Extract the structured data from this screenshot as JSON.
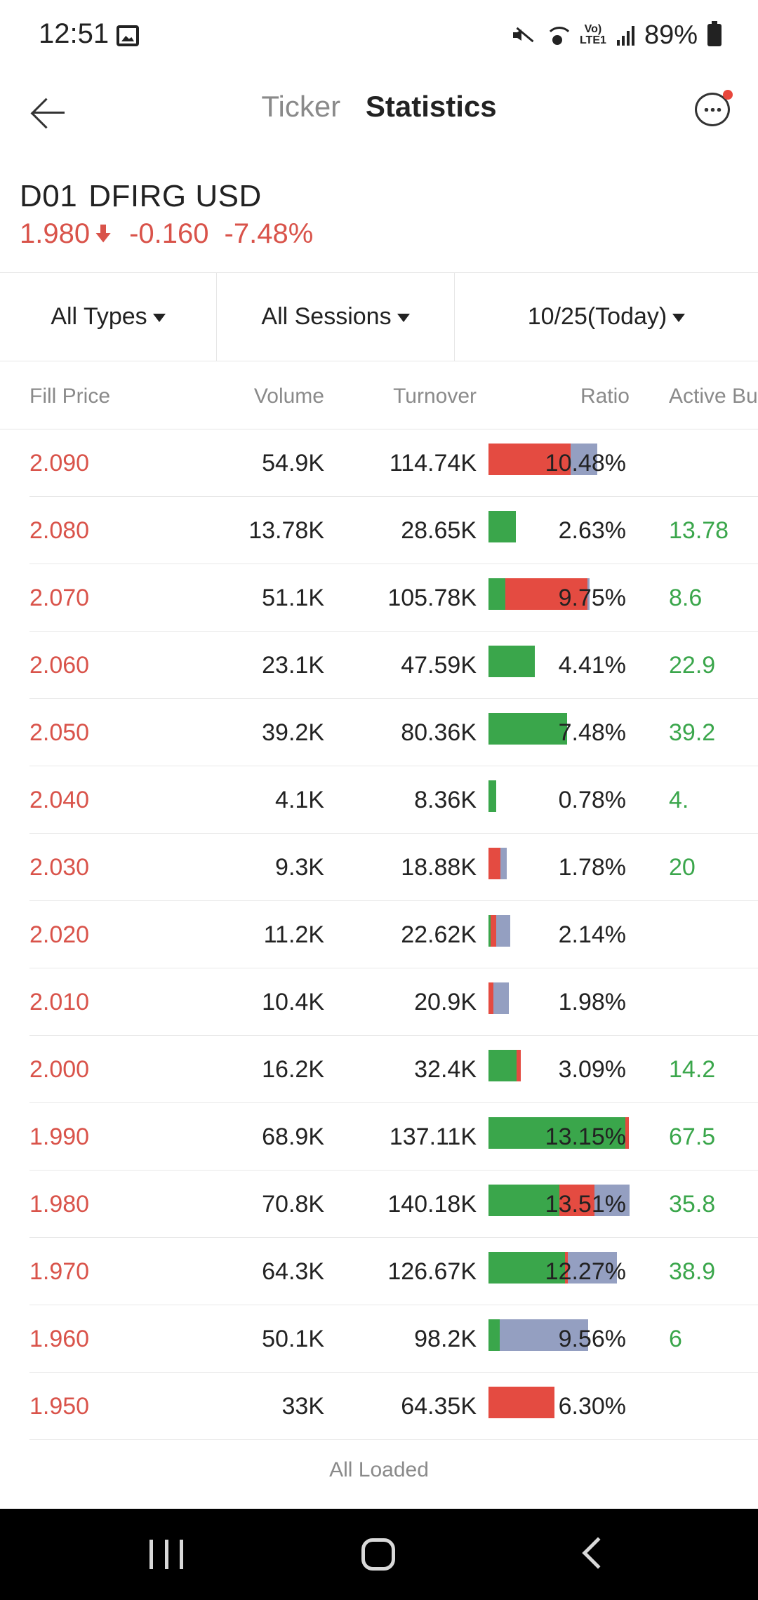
{
  "status_bar": {
    "time": "12:51",
    "battery": "89%",
    "network": "Vo) LTE1"
  },
  "header": {
    "tabs": [
      {
        "label": "Ticker"
      },
      {
        "label": "Statistics"
      }
    ]
  },
  "quote": {
    "code": "D01",
    "name": "DFIRG USD",
    "price": "1.980",
    "change": "-0.160",
    "change_pct": "-7.48%",
    "direction": "down"
  },
  "filters": {
    "type": "All Types",
    "session": "All Sessions",
    "date": "10/25(Today)"
  },
  "columns": {
    "fill_price": "Fill Price",
    "volume": "Volume",
    "turnover": "Turnover",
    "ratio": "Ratio",
    "active_buy": "Active Bu"
  },
  "colors": {
    "up": "#3aa64b",
    "down": "#e44b41",
    "neutral": "#949fc1",
    "price_red": "#d9534a"
  },
  "rows": [
    {
      "price": "2.090",
      "volume": "54.9K",
      "turnover": "114.74K",
      "ratio": "10.48%",
      "active_buy": "",
      "ratio_value": 10.48,
      "bar": {
        "buy": 0,
        "sell": 117,
        "neutral": 38
      }
    },
    {
      "price": "2.080",
      "volume": "13.78K",
      "turnover": "28.65K",
      "ratio": "2.63%",
      "active_buy": "13.78",
      "ratio_value": 2.63,
      "bar": {
        "buy": 39,
        "sell": 0,
        "neutral": 0
      }
    },
    {
      "price": "2.070",
      "volume": "51.1K",
      "turnover": "105.78K",
      "ratio": "9.75%",
      "active_buy": "8.6",
      "ratio_value": 9.75,
      "bar": {
        "buy": 24,
        "sell": 117,
        "neutral": 3
      }
    },
    {
      "price": "2.060",
      "volume": "23.1K",
      "turnover": "47.59K",
      "ratio": "4.41%",
      "active_buy": "22.9",
      "ratio_value": 4.41,
      "bar": {
        "buy": 66,
        "sell": 0,
        "neutral": 0
      }
    },
    {
      "price": "2.050",
      "volume": "39.2K",
      "turnover": "80.36K",
      "ratio": "7.48%",
      "active_buy": "39.2",
      "ratio_value": 7.48,
      "bar": {
        "buy": 112,
        "sell": 0,
        "neutral": 0
      }
    },
    {
      "price": "2.040",
      "volume": "4.1K",
      "turnover": "8.36K",
      "ratio": "0.78%",
      "active_buy": "4.",
      "ratio_value": 0.78,
      "bar": {
        "buy": 11,
        "sell": 0,
        "neutral": 0
      }
    },
    {
      "price": "2.030",
      "volume": "9.3K",
      "turnover": "18.88K",
      "ratio": "1.78%",
      "active_buy": "20",
      "ratio_value": 1.78,
      "bar": {
        "buy": 0,
        "sell": 17,
        "neutral": 9
      }
    },
    {
      "price": "2.020",
      "volume": "11.2K",
      "turnover": "22.62K",
      "ratio": "2.14%",
      "active_buy": "",
      "ratio_value": 2.14,
      "bar": {
        "buy": 3,
        "sell": 8,
        "neutral": 20
      }
    },
    {
      "price": "2.010",
      "volume": "10.4K",
      "turnover": "20.9K",
      "ratio": "1.98%",
      "active_buy": "",
      "ratio_value": 1.98,
      "bar": {
        "buy": 0,
        "sell": 7,
        "neutral": 22
      }
    },
    {
      "price": "2.000",
      "volume": "16.2K",
      "turnover": "32.4K",
      "ratio": "3.09%",
      "active_buy": "14.2",
      "ratio_value": 3.09,
      "bar": {
        "buy": 40,
        "sell": 6,
        "neutral": 0
      }
    },
    {
      "price": "1.990",
      "volume": "68.9K",
      "turnover": "137.11K",
      "ratio": "13.15%",
      "active_buy": "67.5",
      "ratio_value": 13.15,
      "bar": {
        "buy": 195,
        "sell": 5,
        "neutral": 0
      }
    },
    {
      "price": "1.980",
      "volume": "70.8K",
      "turnover": "140.18K",
      "ratio": "13.51%",
      "active_buy": "35.8",
      "ratio_value": 13.51,
      "bar": {
        "buy": 101,
        "sell": 50,
        "neutral": 50
      }
    },
    {
      "price": "1.970",
      "volume": "64.3K",
      "turnover": "126.67K",
      "ratio": "12.27%",
      "active_buy": "38.9",
      "ratio_value": 12.27,
      "bar": {
        "buy": 109,
        "sell": 4,
        "neutral": 70
      }
    },
    {
      "price": "1.960",
      "volume": "50.1K",
      "turnover": "98.2K",
      "ratio": "9.56%",
      "active_buy": "6",
      "ratio_value": 9.56,
      "bar": {
        "buy": 16,
        "sell": 0,
        "neutral": 126
      }
    },
    {
      "price": "1.950",
      "volume": "33K",
      "turnover": "64.35K",
      "ratio": "6.30%",
      "active_buy": "",
      "ratio_value": 6.3,
      "bar": {
        "buy": 0,
        "sell": 94,
        "neutral": 0
      }
    }
  ],
  "footer": {
    "text": "All Loaded"
  }
}
